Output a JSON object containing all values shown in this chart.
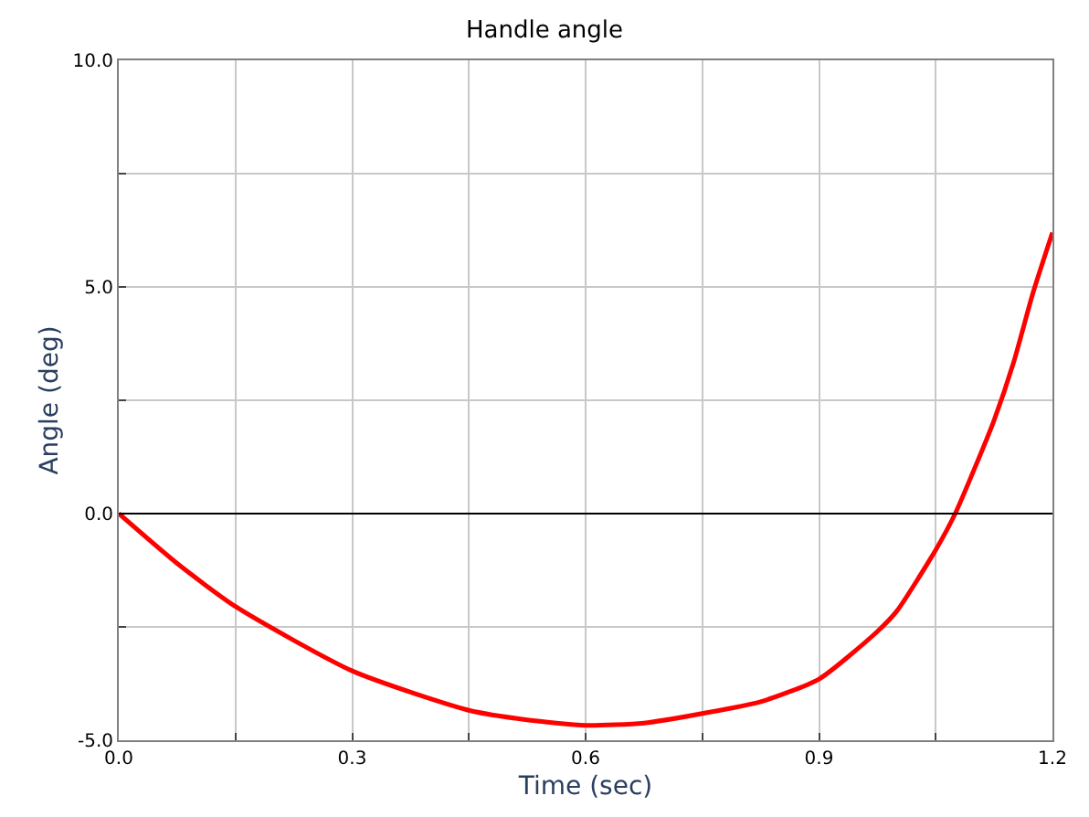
{
  "chart_data": {
    "type": "line",
    "title": "Handle angle",
    "xlabel": "Time (sec)",
    "ylabel": "Angle (deg)",
    "x": [
      0,
      0.075,
      0.15,
      0.3,
      0.45,
      0.525,
      0.6,
      0.675,
      0.75,
      0.825,
      0.9,
      0.975,
      1.0,
      1.05,
      1.075,
      1.1,
      1.125,
      1.15,
      1.175,
      1.2
    ],
    "series": [
      {
        "color": "#ff0000",
        "values": [
          0,
          -1.1,
          -2.05,
          -3.47,
          -4.34,
          -4.55,
          -4.67,
          -4.62,
          -4.41,
          -4.15,
          -3.65,
          -2.6,
          -2.15,
          -0.8,
          0,
          1.0,
          2.06,
          3.33,
          4.87,
          6.2
        ]
      }
    ],
    "xlim": [
      0,
      1.2
    ],
    "ylim": [
      -5,
      10
    ],
    "xticks": [
      {
        "value": 0,
        "label": "0.0"
      },
      {
        "value": 0.15,
        "label": null
      },
      {
        "value": 0.3,
        "label": "0.3"
      },
      {
        "value": 0.45,
        "label": null
      },
      {
        "value": 0.6,
        "label": "0.6"
      },
      {
        "value": 0.75,
        "label": null
      },
      {
        "value": 0.9,
        "label": "0.9"
      },
      {
        "value": 1.05,
        "label": null
      },
      {
        "value": 1.2,
        "label": "1.2"
      }
    ],
    "yticks": [
      {
        "value": -5,
        "label": "-5.0"
      },
      {
        "value": -2.5,
        "label": null
      },
      {
        "value": 0,
        "label": "0.0"
      },
      {
        "value": 2.5,
        "label": null
      },
      {
        "value": 5,
        "label": "5.0"
      },
      {
        "value": 7.5,
        "label": null
      },
      {
        "value": 10,
        "label": "10.0"
      }
    ],
    "ref_lines": [
      {
        "axis": "y",
        "value": 0,
        "color": "#000000"
      }
    ],
    "grid": true,
    "legend": false,
    "marker": "none",
    "line_style": "solid"
  }
}
